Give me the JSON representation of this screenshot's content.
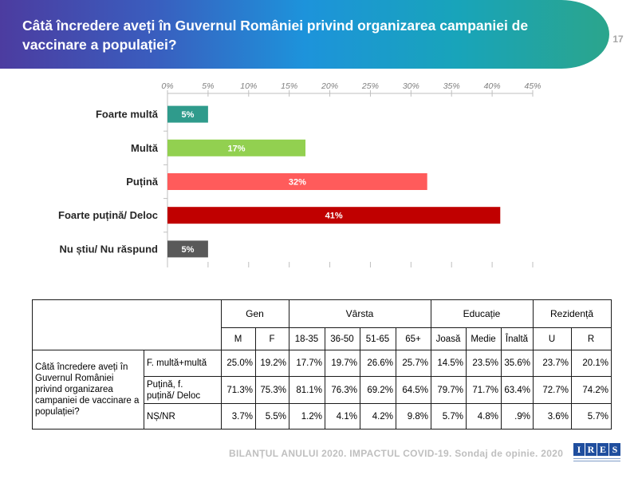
{
  "header": {
    "title": "Câtă încredere aveți în Guvernul României privind organizarea campaniei de vaccinare a populației?",
    "page_number": "17",
    "gradient_colors": [
      "#4C3CA0",
      "#3A5DBE",
      "#1D93DB",
      "#18A4BA",
      "#2BA58C"
    ]
  },
  "chart_data": {
    "type": "bar",
    "horizontal": true,
    "categories": [
      "Foarte multă",
      "Multă",
      "Puțină",
      "Foarte puțină/ Deloc",
      "Nu știu/ Nu răspund"
    ],
    "values": [
      5,
      17,
      32,
      41,
      5
    ],
    "value_labels": [
      "5%",
      "17%",
      "32%",
      "41%",
      "5%"
    ],
    "colors": [
      "#2F9B8C",
      "#92D050",
      "#FF5B5B",
      "#C00000",
      "#595959"
    ],
    "xlim": [
      0,
      45
    ],
    "x_ticks": [
      0,
      5,
      10,
      15,
      20,
      25,
      30,
      35,
      40,
      45
    ],
    "x_tick_labels": [
      "0%",
      "5%",
      "10%",
      "15%",
      "20%",
      "25%",
      "30%",
      "35%",
      "40%",
      "45%"
    ],
    "x_axis_on_top": true,
    "grid": false,
    "legend": false
  },
  "table": {
    "groups": [
      {
        "label": "Gen",
        "columns": [
          "M",
          "F"
        ]
      },
      {
        "label": "Vârsta",
        "columns": [
          "18-35",
          "36-50",
          "51-65",
          "65+"
        ]
      },
      {
        "label": "Educație",
        "columns": [
          "Joasă",
          "Medie",
          "Înaltă"
        ]
      },
      {
        "label": "Rezidență",
        "columns": [
          "U",
          "R"
        ]
      }
    ],
    "question": "Câtă încredere aveți în Guvernul României privind organizarea campaniei de vaccinare a populației?",
    "rows": [
      {
        "label": "F. multă+multă",
        "values": [
          "25.0%",
          "19.2%",
          "17.7%",
          "19.7%",
          "26.6%",
          "25.7%",
          "14.5%",
          "23.5%",
          "35.6%",
          "23.7%",
          "20.1%"
        ]
      },
      {
        "label": "Puțină, f. puțină/ Deloc",
        "values": [
          "71.3%",
          "75.3%",
          "81.1%",
          "76.3%",
          "69.2%",
          "64.5%",
          "79.7%",
          "71.7%",
          "63.4%",
          "72.7%",
          "74.2%"
        ]
      },
      {
        "label": "NȘ/NR",
        "values": [
          "3.7%",
          "5.5%",
          "1.2%",
          "4.1%",
          "4.2%",
          "9.8%",
          "5.7%",
          "4.8%",
          ".9%",
          "3.6%",
          "5.7%"
        ]
      }
    ]
  },
  "footer": {
    "text": "BILANȚUL ANULUI 2020. IMPACTUL COVID-19. Sondaj de opinie. 2020",
    "logo_text": "IRES",
    "logo_color": "#1F4E9E"
  }
}
